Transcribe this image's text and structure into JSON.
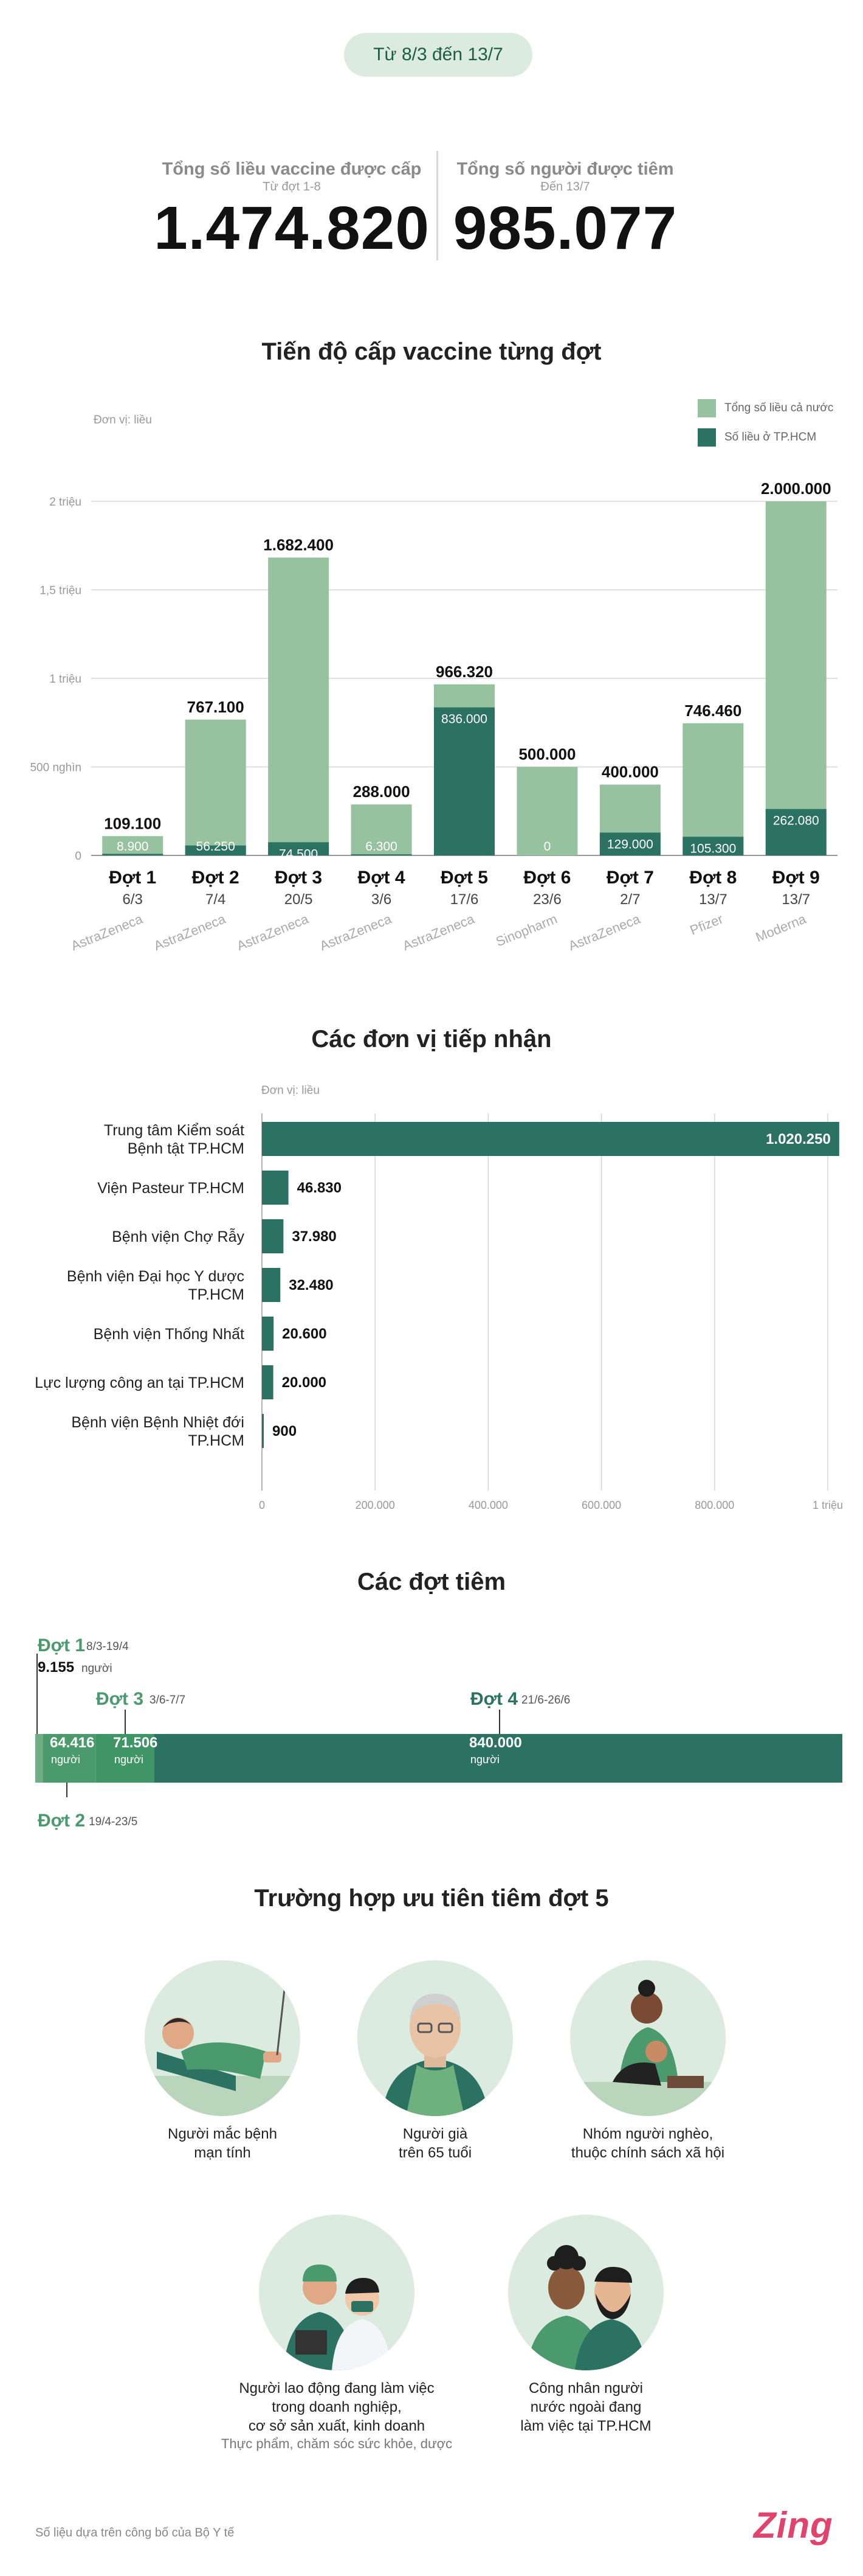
{
  "header": {
    "date_range": "Từ 8/3 đến 13/7"
  },
  "stats": {
    "doses_label": "Tổng số liều vaccine được cấp",
    "doses_sub": "Từ đợt 1-8",
    "doses_value": "1.474.820",
    "people_label": "Tổng số người được tiêm",
    "people_sub": "Đến 13/7",
    "people_value": "985.077"
  },
  "colors": {
    "light": "#97c29f",
    "dark": "#2b7262",
    "mid": "#4a9a6e"
  },
  "chart_data": [
    {
      "type": "bar",
      "title": "Tiến độ cấp vaccine từng đợt",
      "unit": "Đơn vị: liều",
      "legend": [
        "Tổng số liều cả nước",
        "Số liều ở TP.HCM"
      ],
      "legend_position": "top-right",
      "ylim": [
        0,
        2000000
      ],
      "yticks": [
        0,
        500000,
        1000000,
        1500000,
        2000000
      ],
      "ytick_labels": [
        "0",
        "500 nghìn",
        "1 triệu",
        "1,5 triệu",
        "2 triệu"
      ],
      "categories": [
        "Đợt 1",
        "Đợt 2",
        "Đợt 3",
        "Đợt 4",
        "Đợt 5",
        "Đợt 6",
        "Đợt 7",
        "Đợt 8",
        "Đợt 9"
      ],
      "dates": [
        "6/3",
        "7/4",
        "20/5",
        "3/6",
        "17/6",
        "23/6",
        "2/7",
        "13/7",
        "13/7"
      ],
      "vaccines": [
        "AstraZeneca",
        "AstraZeneca",
        "AstraZeneca",
        "AstraZeneca",
        "AstraZeneca",
        "Sinopharm",
        "AstraZeneca",
        "Pfizer",
        "Moderna"
      ],
      "series": [
        {
          "name": "Tổng số liều cả nước",
          "values": [
            109100,
            767100,
            1682400,
            288000,
            966320,
            500000,
            400000,
            746460,
            2000000
          ],
          "labels": [
            "109.100",
            "767.100",
            "1.682.400",
            "288.000",
            "966.320",
            "500.000",
            "400.000",
            "746.460",
            "2.000.000"
          ]
        },
        {
          "name": "Số liều ở TP.HCM",
          "values": [
            8900,
            56250,
            74500,
            6300,
            836000,
            0,
            129000,
            105300,
            262080
          ],
          "labels": [
            "8.900",
            "56.250",
            "74.500",
            "6.300",
            "836.000",
            "0",
            "129.000",
            "105.300",
            "262.080"
          ]
        }
      ]
    },
    {
      "type": "bar",
      "orientation": "horizontal",
      "title": "Các đơn vị tiếp nhận",
      "unit": "Đơn vị: liều",
      "xlim": [
        0,
        1000000
      ],
      "xticks": [
        0,
        200000,
        400000,
        600000,
        800000,
        1000000
      ],
      "xtick_labels": [
        "0",
        "200.000",
        "400.000",
        "600.000",
        "800.000",
        "1 triệu"
      ],
      "categories": [
        "Trung tâm Kiểm soát\nBệnh tật TP.HCM",
        "Viện Pasteur TP.HCM",
        "Bệnh viện Chợ Rẫy",
        "Bệnh viện Đại học Y dược\nTP.HCM",
        "Bệnh viện Thống Nhất",
        "Lực lượng công an tại TP.HCM",
        "Bệnh viện Bệnh Nhiệt đới\nTP.HCM"
      ],
      "values": [
        1020250,
        46830,
        37980,
        32480,
        20600,
        20000,
        900
      ],
      "labels": [
        "1.020.250",
        "46.830",
        "37.980",
        "32.480",
        "20.600",
        "20.000",
        "900"
      ]
    },
    {
      "type": "bar",
      "orientation": "stacked-horizontal",
      "title": "Các đợt tiêm",
      "unit_word": "người",
      "segments": [
        {
          "name": "Đợt 1",
          "dates": "8/3-19/4",
          "value": 9155,
          "label": "9.155"
        },
        {
          "name": "Đợt 2",
          "dates": "19/4-23/5",
          "value": 64416,
          "label": "64.416"
        },
        {
          "name": "Đợt 3",
          "dates": "3/6-7/7",
          "value": 71506,
          "label": "71.506"
        },
        {
          "name": "Đợt 4",
          "dates": "21/6-26/6",
          "value": 840000,
          "label": "840.000"
        }
      ]
    }
  ],
  "priority": {
    "title": "Trường hợp ưu tiên tiêm đợt 5",
    "groups": [
      {
        "line1": "Người mắc bệnh",
        "line2": "mạn tính"
      },
      {
        "line1": "Người già",
        "line2": "trên 65 tuổi"
      },
      {
        "line1": "Nhóm người nghèo,",
        "line2": "thuộc chính sách xã hội"
      },
      {
        "line1": "Người lao động đang làm việc",
        "line2": "trong doanh nghiệp,",
        "line3": "cơ sở sản xuất, kinh doanh",
        "sub": "Thực phẩm, chăm sóc sức khỏe, dược"
      },
      {
        "line1": "Công nhân người",
        "line2": "nước ngoài đang",
        "line3": "làm việc tại TP.HCM"
      }
    ]
  },
  "footer": {
    "source": "Số liệu dựa trên công bố của Bộ Y tế",
    "logo": "Zing"
  }
}
